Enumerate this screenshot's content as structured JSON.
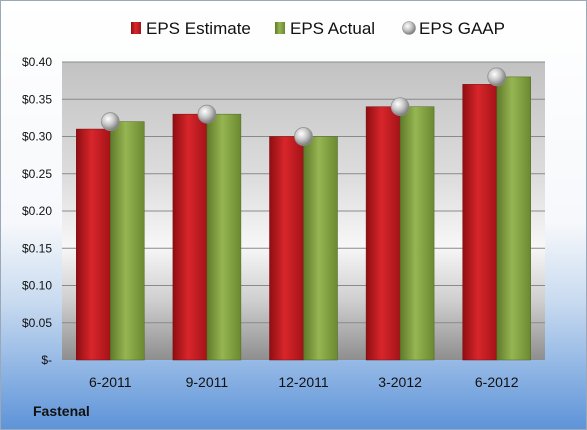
{
  "chart_data": {
    "type": "bar",
    "categories": [
      "6-2011",
      "9-2011",
      "12-2011",
      "3-2012",
      "6-2012"
    ],
    "series": [
      {
        "name": "EPS Estimate",
        "type": "bar",
        "values": [
          0.31,
          0.33,
          0.3,
          0.34,
          0.37
        ]
      },
      {
        "name": "EPS Actual",
        "type": "bar",
        "values": [
          0.32,
          0.33,
          0.3,
          0.34,
          0.38
        ]
      },
      {
        "name": "EPS GAAP",
        "type": "scatter",
        "values": [
          0.32,
          0.33,
          0.3,
          0.34,
          0.38
        ]
      }
    ],
    "ylim": [
      0,
      0.4
    ],
    "yticks": [
      0,
      0.05,
      0.1,
      0.15,
      0.2,
      0.25,
      0.3,
      0.35,
      0.4
    ],
    "ytick_labels": [
      "$-",
      "$0.05",
      "$0.10",
      "$0.15",
      "$0.20",
      "$0.25",
      "$0.30",
      "$0.35",
      "$0.40"
    ],
    "grid": true,
    "legend_position": "top",
    "colors": {
      "estimate": "#c0181e",
      "actual": "#7e9e3c",
      "gaap": "#b8b8b8"
    }
  },
  "footer": {
    "company": "Fastenal"
  }
}
